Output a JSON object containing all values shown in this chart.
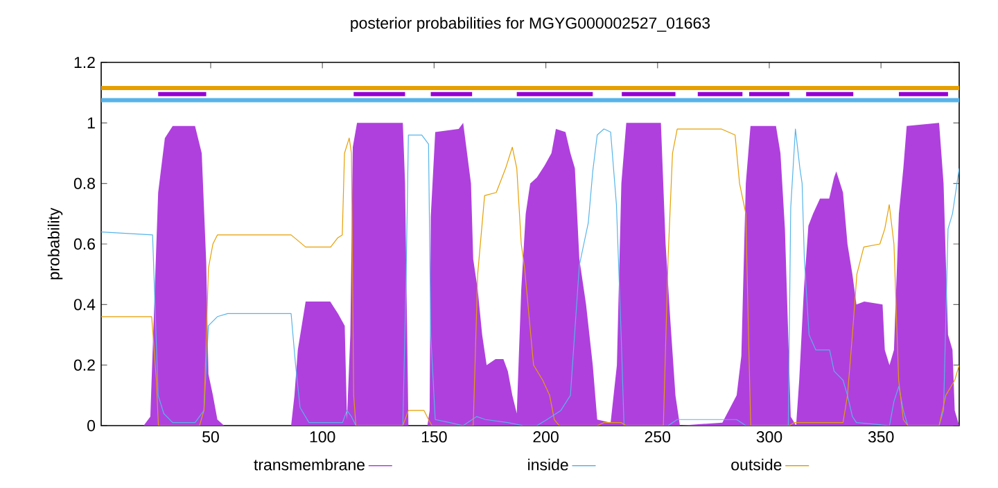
{
  "chart_data": {
    "type": "line",
    "title": "posterior probabilities for MGYG000002527_01663",
    "ylabel": "probability",
    "xlim": [
      1,
      385
    ],
    "xticks": [
      50,
      100,
      150,
      200,
      250,
      300,
      350
    ],
    "ylim": [
      0,
      1.2
    ],
    "yticks": [
      0,
      0.2,
      0.4,
      0.6,
      0.8,
      1,
      1.2
    ],
    "legend": "bottom",
    "series": [
      {
        "name": "transmembrane",
        "type": "area",
        "color": "#af40de",
        "x": [
          1,
          20,
          23,
          26.5,
          29.5,
          33,
          43,
          46,
          48,
          49,
          51,
          53,
          56,
          86,
          87.5,
          89,
          92.5,
          103.5,
          107,
          110,
          111,
          112.5,
          113.6,
          115.5,
          136,
          137,
          138.5,
          147,
          148,
          148.5,
          150.5,
          161,
          163,
          166.5,
          167.5,
          169.5,
          171.5,
          173.5,
          177.5,
          181,
          183,
          185,
          187,
          189,
          191,
          193,
          196,
          199.5,
          202.5,
          204.5,
          208.8,
          211,
          213,
          215,
          218,
          221,
          223,
          229,
          231.8,
          233.8,
          236,
          251.5,
          253.6,
          255.7,
          258,
          260,
          279,
          285.4,
          287.5,
          289.5,
          291.6,
          303,
          305,
          307,
          309.6,
          312,
          313.4,
          315.5,
          317.5,
          319.6,
          322.7,
          326.8,
          329,
          330,
          333,
          335,
          337.2,
          339,
          342.5,
          350.7,
          351.7,
          353.8,
          355.8,
          358,
          360,
          361.5,
          376,
          378,
          380,
          382,
          383,
          385
        ],
        "values": [
          0,
          0,
          0.03,
          0.77,
          0.95,
          0.99,
          0.99,
          0.9,
          0.54,
          0.17,
          0.1,
          0.02,
          0,
          0,
          0.1,
          0.25,
          0.41,
          0.41,
          0.37,
          0.33,
          0.02,
          0.3,
          0.92,
          1,
          1,
          0.8,
          0,
          0,
          0.05,
          0.69,
          0.97,
          0.98,
          1,
          0.8,
          0.55,
          0.45,
          0.3,
          0.2,
          0.22,
          0.22,
          0.18,
          0.1,
          0.04,
          0.45,
          0.7,
          0.8,
          0.82,
          0.86,
          0.9,
          0.98,
          0.97,
          0.9,
          0.85,
          0.55,
          0.4,
          0.2,
          0.02,
          0.01,
          0.2,
          0.8,
          1,
          1,
          0.6,
          0.35,
          0.1,
          0,
          0.01,
          0.1,
          0.23,
          0.8,
          0.99,
          0.99,
          0.9,
          0.65,
          0.03,
          0,
          0.15,
          0.45,
          0.66,
          0.7,
          0.75,
          0.75,
          0.82,
          0.84,
          0.77,
          0.6,
          0.5,
          0.4,
          0.41,
          0.4,
          0.25,
          0.2,
          0.25,
          0.7,
          0.85,
          0.99,
          1,
          0.8,
          0.3,
          0.25,
          0.05,
          0
        ]
      },
      {
        "name": "inside",
        "color": "#56b4e9",
        "x": [
          1,
          24,
          26.5,
          29,
          33,
          43,
          47,
          49,
          53,
          57.6,
          86,
          88,
          90,
          94,
          109,
          111,
          113,
          115,
          136,
          137.5,
          138.5,
          144.5,
          147.5,
          148.5,
          150.5,
          157,
          163,
          169,
          173,
          183,
          190,
          196,
          200.5,
          206.7,
          211,
          215,
          217,
          219,
          221,
          223,
          226,
          229,
          231.6,
          233.7,
          235,
          254.7,
          258.8,
          285.4,
          289.5,
          308.5,
          309.6,
          311.7,
          313.7,
          314.7,
          315.7,
          317.8,
          320.8,
          327,
          329,
          333,
          335,
          337.2,
          339,
          353.8,
          355.8,
          358,
          360,
          362,
          376,
          378,
          380,
          382,
          385
        ],
        "values": [
          0.64,
          0.63,
          0.1,
          0.04,
          0.01,
          0.01,
          0.05,
          0.33,
          0.36,
          0.37,
          0.37,
          0.2,
          0.06,
          0.01,
          0.01,
          0.05,
          0.03,
          0,
          0,
          0.5,
          0.96,
          0.96,
          0.93,
          0.3,
          0.02,
          0.01,
          0,
          0.03,
          0.02,
          0.01,
          0,
          0,
          0.02,
          0.05,
          0.1,
          0.53,
          0.6,
          0.67,
          0.84,
          0.96,
          0.98,
          0.97,
          0.73,
          0.3,
          0,
          0,
          0.02,
          0.02,
          0,
          0,
          0.72,
          0.98,
          0.85,
          0.8,
          0.55,
          0.3,
          0.25,
          0.25,
          0.18,
          0.15,
          0.1,
          0.03,
          0.01,
          0,
          0.08,
          0.13,
          0.05,
          0,
          0,
          0.05,
          0.65,
          0.7,
          0.85
        ]
      },
      {
        "name": "outside",
        "color": "#e69f00",
        "x": [
          1,
          23.6,
          25.7,
          26.6,
          45,
          47,
          49,
          51,
          53,
          86,
          92.5,
          103.7,
          106.8,
          108.9,
          109.9,
          112,
          113,
          114,
          115,
          136,
          138.5,
          145.5,
          147.5,
          149,
          167.5,
          169.5,
          172.6,
          177.8,
          182,
          185,
          187,
          189,
          190.5,
          194.5,
          198.6,
          201.7,
          203.8,
          206,
          223,
          226,
          233.7,
          236,
          252.6,
          254.7,
          256.7,
          258.8,
          278.5,
          284.7,
          286.7,
          289.5,
          290.7,
          291.7,
          309,
          311,
          333,
          335,
          337.2,
          339.2,
          342.3,
          349.5,
          351.7,
          353.7,
          355.8,
          357.9,
          360,
          362,
          376,
          379,
          383,
          385
        ],
        "values": [
          0.36,
          0.36,
          0.15,
          0,
          0,
          0.05,
          0.52,
          0.6,
          0.63,
          0.63,
          0.59,
          0.59,
          0.62,
          0.63,
          0.9,
          0.95,
          0.9,
          0.1,
          0,
          0,
          0.05,
          0.05,
          0.02,
          0,
          0,
          0.5,
          0.76,
          0.77,
          0.85,
          0.92,
          0.85,
          0.6,
          0.52,
          0.2,
          0.15,
          0.1,
          0.02,
          0,
          0,
          0.01,
          0.01,
          0,
          0,
          0.55,
          0.9,
          0.98,
          0.98,
          0.96,
          0.8,
          0.7,
          0.3,
          0,
          0,
          0.01,
          0.01,
          0.1,
          0.3,
          0.5,
          0.59,
          0.6,
          0.65,
          0.73,
          0.6,
          0.15,
          0.02,
          0,
          0,
          0.1,
          0.15,
          0.2
        ]
      },
      {
        "color": "#e69f00",
        "x": [
          1,
          385
        ],
        "values": [
          1.115,
          1.115
        ]
      },
      {
        "color": "#56b4e9",
        "x": [
          1,
          385
        ],
        "values": [
          1.075,
          1.075
        ]
      },
      {
        "color": "#9400d3",
        "x": [
          26.5,
          48
        ],
        "values": [
          1.095,
          1.095
        ]
      },
      {
        "color": "#9400d3",
        "x": [
          114,
          137
        ],
        "values": [
          1.095,
          1.095
        ]
      },
      {
        "color": "#9400d3",
        "x": [
          148.5,
          167
        ],
        "values": [
          1.095,
          1.095
        ]
      },
      {
        "color": "#9400d3",
        "x": [
          187,
          221
        ],
        "values": [
          1.095,
          1.095
        ]
      },
      {
        "color": "#9400d3",
        "x": [
          234,
          258
        ],
        "values": [
          1.095,
          1.095
        ]
      },
      {
        "color": "#9400d3",
        "x": [
          268,
          288
        ],
        "values": [
          1.095,
          1.095
        ]
      },
      {
        "color": "#9400d3",
        "x": [
          291,
          309
        ],
        "values": [
          1.095,
          1.095
        ]
      },
      {
        "color": "#9400d3",
        "x": [
          316.5,
          337.6
        ],
        "values": [
          1.095,
          1.095
        ]
      },
      {
        "color": "#9400d3",
        "x": [
          358,
          380
        ],
        "values": [
          1.095,
          1.095
        ]
      }
    ]
  }
}
